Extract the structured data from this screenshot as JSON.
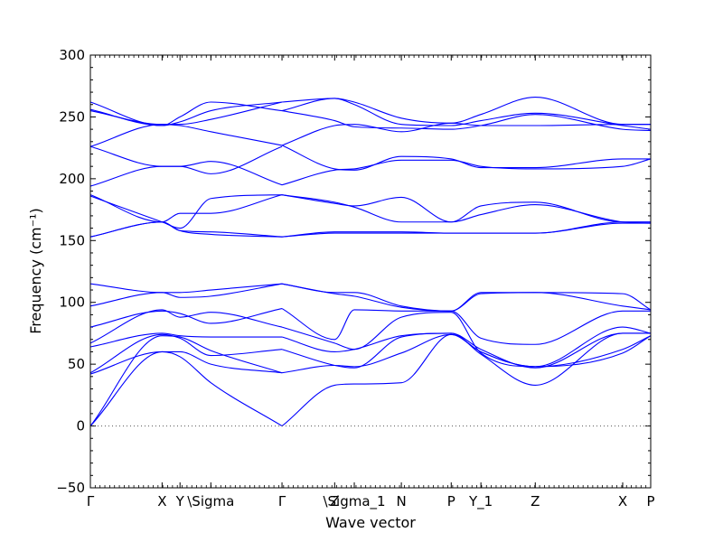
{
  "chart_data": {
    "type": "line",
    "title": "",
    "xlabel": "Wave vector",
    "ylabel": "Frequency (cm⁻¹)",
    "ylim": [
      -50,
      300
    ],
    "y_ticks": [
      -50,
      0,
      50,
      100,
      150,
      200,
      250,
      300
    ],
    "x_range": [
      0,
      1
    ],
    "grid": false,
    "legend": "none",
    "line_color": "#0000ff",
    "zero_line_color": "#555555",
    "x_ticks": [
      {
        "x": 0.0,
        "label": "Γ"
      },
      {
        "x": 0.128,
        "label": "X"
      },
      {
        "x": 0.16,
        "label": "Y"
      },
      {
        "x": 0.215,
        "label": "\\Sigma"
      },
      {
        "x": 0.342,
        "label": "Γ"
      },
      {
        "x": 0.436,
        "label": "Z"
      },
      {
        "x": 0.471,
        "label": "\\Sigma_1"
      },
      {
        "x": 0.555,
        "label": "N"
      },
      {
        "x": 0.644,
        "label": "P"
      },
      {
        "x": 0.697,
        "label": "Y_1"
      },
      {
        "x": 0.794,
        "label": "Z"
      },
      {
        "x": 0.95,
        "label": "X"
      },
      {
        "x": 1.0,
        "label": "P"
      }
    ],
    "series": [
      {
        "x": [
          0,
          0.128,
          0.16,
          0.215,
          0.342
        ],
        "y": [
          262,
          243,
          250,
          262,
          255
        ]
      },
      {
        "x": [
          0,
          0.128,
          0.16,
          0.215,
          0.342
        ],
        "y": [
          256,
          243,
          246,
          255,
          262
        ]
      },
      {
        "x": [
          0,
          0.128,
          0.16,
          0.215,
          0.342
        ],
        "y": [
          255,
          244,
          244,
          248,
          262
        ]
      },
      {
        "x": [
          0,
          0.128,
          0.16,
          0.215,
          0.342
        ],
        "y": [
          226,
          244,
          243,
          238,
          227
        ]
      },
      {
        "x": [
          0,
          0.128,
          0.16,
          0.215,
          0.342
        ],
        "y": [
          226,
          210,
          210,
          214,
          195
        ]
      },
      {
        "x": [
          0,
          0.128,
          0.16,
          0.215,
          0.342
        ],
        "y": [
          194,
          210,
          210,
          204,
          226
        ]
      },
      {
        "x": [
          0,
          0.128,
          0.16,
          0.215,
          0.342
        ],
        "y": [
          187,
          165,
          172,
          172,
          187
        ]
      },
      {
        "x": [
          0,
          0.128,
          0.16,
          0.215,
          0.342
        ],
        "y": [
          186,
          165,
          160,
          184,
          187
        ]
      },
      {
        "x": [
          0,
          0.128,
          0.16,
          0.215,
          0.342
        ],
        "y": [
          153,
          165,
          158,
          157,
          153
        ]
      },
      {
        "x": [
          0,
          0.128,
          0.16,
          0.215,
          0.342
        ],
        "y": [
          153,
          165,
          158,
          155,
          153
        ]
      },
      {
        "x": [
          0,
          0.128,
          0.16,
          0.215,
          0.342
        ],
        "y": [
          115,
          108,
          108,
          110,
          115
        ]
      },
      {
        "x": [
          0,
          0.128,
          0.16,
          0.215,
          0.342
        ],
        "y": [
          97,
          108,
          104,
          105,
          115
        ]
      },
      {
        "x": [
          0,
          0.128,
          0.16,
          0.215,
          0.342
        ],
        "y": [
          80,
          93,
          91,
          83,
          95
        ]
      },
      {
        "x": [
          0,
          0.128,
          0.16,
          0.215,
          0.342
        ],
        "y": [
          67,
          94,
          88,
          92,
          80
        ]
      },
      {
        "x": [
          0,
          0.128,
          0.16,
          0.215,
          0.342
        ],
        "y": [
          64,
          75,
          73,
          72,
          72
        ]
      },
      {
        "x": [
          0,
          0.128,
          0.16,
          0.215,
          0.342
        ],
        "y": [
          43,
          74,
          71,
          57,
          62
        ]
      },
      {
        "x": [
          0,
          0.128,
          0.16,
          0.215,
          0.342
        ],
        "y": [
          42,
          60,
          60,
          50,
          43
        ]
      },
      {
        "x": [
          0,
          0.128,
          0.16,
          0.215,
          0.342
        ],
        "y": [
          0,
          73,
          72,
          61,
          43
        ]
      },
      {
        "x": [
          0,
          0.128,
          0.16,
          0.215,
          0.342
        ],
        "y": [
          0,
          60,
          56,
          35,
          0
        ]
      },
      {
        "x": [
          0.342,
          0.436,
          0.471,
          0.555,
          0.644,
          0.697,
          0.794,
          0.95,
          1.0
        ],
        "y": [
          262,
          265,
          262,
          249,
          245,
          252,
          266,
          244,
          244
        ]
      },
      {
        "x": [
          0.342,
          0.436,
          0.471,
          0.555,
          0.644,
          0.697,
          0.794,
          0.95,
          1.0
        ],
        "y": [
          255,
          265,
          260,
          244,
          243,
          247,
          253,
          243,
          240
        ]
      },
      {
        "x": [
          0.342,
          0.436,
          0.471,
          0.555,
          0.644,
          0.697,
          0.794,
          0.95,
          1.0
        ],
        "y": [
          255,
          247,
          242,
          241,
          240,
          243,
          252,
          240,
          239
        ]
      },
      {
        "x": [
          0.342,
          0.436,
          0.471,
          0.555,
          0.644,
          0.697,
          0.794,
          0.95,
          1.0
        ],
        "y": [
          227,
          243,
          244,
          238,
          245,
          243,
          243,
          244,
          244
        ]
      },
      {
        "x": [
          0.342,
          0.436,
          0.471,
          0.555,
          0.644,
          0.697,
          0.794,
          0.95,
          1.0
        ],
        "y": [
          227,
          208,
          207,
          218,
          216,
          209,
          209,
          216,
          216
        ]
      },
      {
        "x": [
          0.342,
          0.436,
          0.471,
          0.555,
          0.644,
          0.697,
          0.794,
          0.95,
          1.0
        ],
        "y": [
          195,
          207,
          208,
          215,
          215,
          210,
          208,
          210,
          216
        ]
      },
      {
        "x": [
          0.342,
          0.436,
          0.471,
          0.555,
          0.644,
          0.697,
          0.794,
          0.95,
          1.0
        ],
        "y": [
          187,
          180,
          178,
          185,
          165,
          171,
          179,
          165,
          164
        ]
      },
      {
        "x": [
          0.342,
          0.436,
          0.471,
          0.555,
          0.644,
          0.697,
          0.794,
          0.95,
          1.0
        ],
        "y": [
          187,
          181,
          177,
          165,
          165,
          178,
          181,
          165,
          165
        ]
      },
      {
        "x": [
          0.342,
          0.436,
          0.471,
          0.555,
          0.644,
          0.697,
          0.794,
          0.95,
          1.0
        ],
        "y": [
          153,
          157,
          157,
          157,
          156,
          156,
          156,
          165,
          165
        ]
      },
      {
        "x": [
          0.342,
          0.436,
          0.471,
          0.555,
          0.644,
          0.697,
          0.794,
          0.95,
          1.0
        ],
        "y": [
          153,
          156,
          156,
          156,
          156,
          156,
          156,
          164,
          164
        ]
      },
      {
        "x": [
          0.342,
          0.436,
          0.471,
          0.555,
          0.644,
          0.697,
          0.794,
          0.95,
          1.0
        ],
        "y": [
          115,
          108,
          108,
          97,
          93,
          107,
          108,
          107,
          94
        ]
      },
      {
        "x": [
          0.342,
          0.436,
          0.471,
          0.555,
          0.644,
          0.697,
          0.794,
          0.95,
          1.0
        ],
        "y": [
          115,
          107,
          105,
          96,
          93,
          108,
          108,
          97,
          94
        ]
      },
      {
        "x": [
          0.342,
          0.436,
          0.471,
          0.555,
          0.644,
          0.697,
          0.794,
          0.95,
          1.0
        ],
        "y": [
          95,
          70,
          94,
          93,
          93,
          71,
          66,
          93,
          93
        ]
      },
      {
        "x": [
          0.342,
          0.436,
          0.471,
          0.555,
          0.644,
          0.697,
          0.794,
          0.95,
          1.0
        ],
        "y": [
          80,
          67,
          62,
          88,
          92,
          59,
          48,
          80,
          75
        ]
      },
      {
        "x": [
          0.342,
          0.436,
          0.471,
          0.555,
          0.644,
          0.697,
          0.794,
          0.95,
          1.0
        ],
        "y": [
          72,
          60,
          62,
          73,
          75,
          62,
          47,
          75,
          75
        ]
      },
      {
        "x": [
          0.342,
          0.436,
          0.471,
          0.555,
          0.644,
          0.697,
          0.794,
          0.95,
          1.0
        ],
        "y": [
          62,
          49,
          47,
          72,
          75,
          58,
          33,
          75,
          75
        ]
      },
      {
        "x": [
          0.342,
          0.436,
          0.471,
          0.555,
          0.644,
          0.697,
          0.794,
          0.95,
          1.0
        ],
        "y": [
          43,
          49,
          48,
          59,
          74,
          60,
          48,
          62,
          73
        ]
      },
      {
        "x": [
          0.342,
          0.436,
          0.471,
          0.555,
          0.644,
          0.697,
          0.794,
          0.95,
          1.0
        ],
        "y": [
          0,
          33,
          34,
          35,
          74,
          60,
          48,
          59,
          73
        ]
      }
    ]
  }
}
